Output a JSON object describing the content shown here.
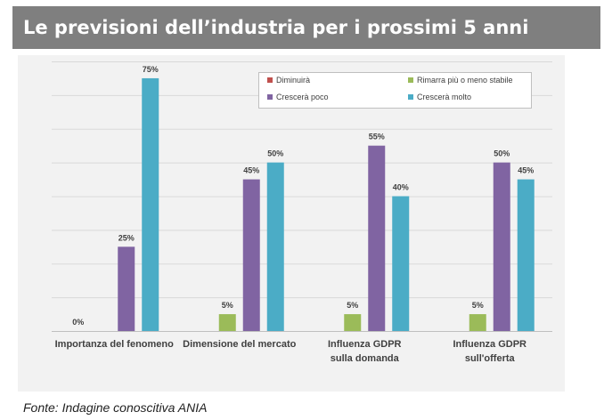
{
  "title": "Le previsioni dell’industria per i prossimi 5 anni",
  "source": "Fonte: Indagine conoscitiva ANIA",
  "colors": {
    "Diminuirà": "#c0504d",
    "Rimarra più o meno stabile": "#9bbb59",
    "Crescerà poco": "#8064a2",
    "Crescerà molto": "#4bacc6"
  },
  "chart_data": {
    "type": "bar",
    "title": "Le previsioni dell’industria per i prossimi 5 anni",
    "categories": [
      [
        "Importanza del fenomeno"
      ],
      [
        "Dimensione del mercato"
      ],
      [
        "Influenza GDPR",
        "sulla domanda"
      ],
      [
        "Influenza GDPR",
        "sull'offerta"
      ]
    ],
    "series": [
      {
        "name": "Diminuirà",
        "values": [
          0,
          null,
          null,
          null
        ],
        "labels": [
          "0%",
          null,
          null,
          null
        ]
      },
      {
        "name": "Rimarra più o meno stabile",
        "values": [
          null,
          5,
          5,
          5
        ],
        "labels": [
          null,
          "5%",
          "5%",
          "5%"
        ]
      },
      {
        "name": "Crescerà poco",
        "values": [
          25,
          45,
          55,
          50
        ],
        "labels": [
          "25%",
          "45%",
          "55%",
          "50%"
        ]
      },
      {
        "name": "Crescerà molto",
        "values": [
          75,
          50,
          40,
          45
        ],
        "labels": [
          "75%",
          "50%",
          "40%",
          "45%"
        ]
      }
    ],
    "ylim": [
      0,
      80
    ],
    "gridlines": true,
    "legend": "top-right",
    "xlabel": "",
    "ylabel": ""
  }
}
